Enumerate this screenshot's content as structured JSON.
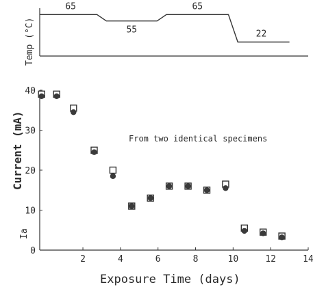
{
  "chart_data": [
    {
      "type": "line",
      "ylabel": "Temp (°C)",
      "segments": [
        {
          "x_start": -0.3,
          "x_end": 3.0,
          "value": 65
        },
        {
          "x_start": 3.0,
          "x_end": 6.2,
          "value": 55
        },
        {
          "x_start": 6.2,
          "x_end": 10.0,
          "value": 65
        },
        {
          "x_start": 10.0,
          "x_end": 13.0,
          "value": 22
        }
      ],
      "labels": [
        "65",
        "55",
        "65",
        "22"
      ],
      "ylim": [
        0,
        75
      ],
      "xlim": [
        -0.3,
        14
      ]
    },
    {
      "type": "scatter",
      "xlabel": "Exposure Time (days)",
      "ylabel": "Current (mA)",
      "side_label": "Ia",
      "annotation": "From two identical specimens",
      "xlim": [
        -0.3,
        14
      ],
      "ylim": [
        0,
        40
      ],
      "x_ticks": [
        "2",
        "4",
        "6",
        "8",
        "10",
        "12",
        "14"
      ],
      "x_tick_values": [
        2,
        4,
        6,
        8,
        10,
        12,
        14
      ],
      "y_ticks": [
        "0",
        "10",
        "20",
        "30",
        "40"
      ],
      "y_tick_values": [
        0,
        10,
        20,
        30,
        40
      ],
      "series": [
        {
          "marker": "open-square",
          "x": [
            -0.2,
            0.6,
            1.5,
            2.6,
            3.6,
            4.6,
            5.6,
            6.6,
            7.6,
            8.6,
            9.6,
            10.6,
            11.6,
            12.6
          ],
          "y": [
            39,
            39,
            35.5,
            25,
            20,
            11,
            13,
            16,
            16,
            15,
            16.5,
            5.5,
            4.5,
            3.5
          ]
        },
        {
          "marker": "filled-circle",
          "x": [
            -0.2,
            0.6,
            1.5,
            2.6,
            3.6,
            4.6,
            5.6,
            6.6,
            7.6,
            8.6,
            9.6,
            10.6,
            11.6,
            12.6
          ],
          "y": [
            38.5,
            38.5,
            34.5,
            24.5,
            18.5,
            11,
            13,
            16,
            16,
            15,
            15.5,
            4.8,
            4.2,
            3.2
          ]
        }
      ]
    }
  ]
}
